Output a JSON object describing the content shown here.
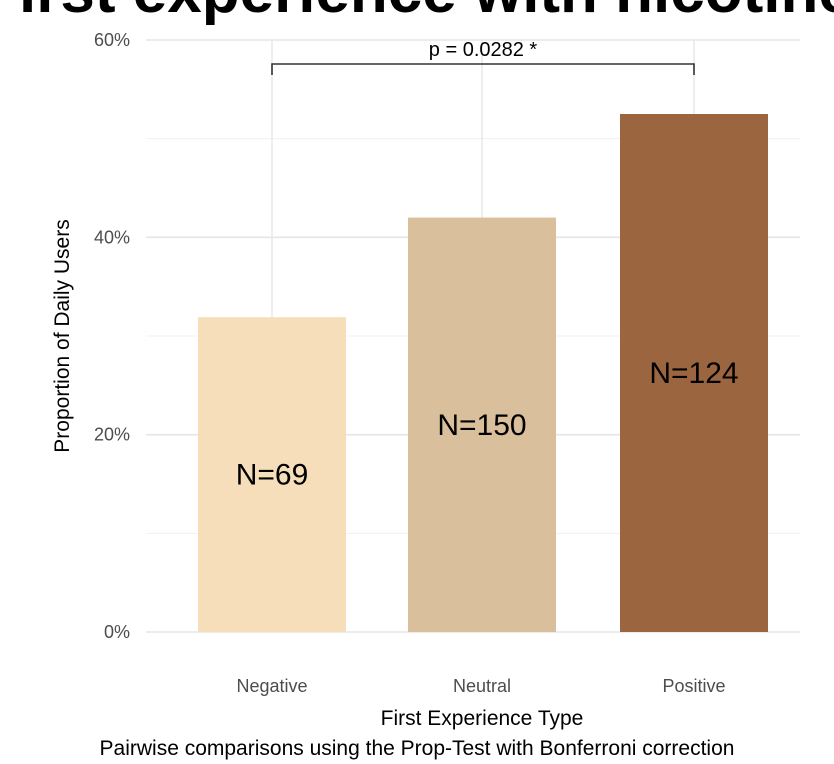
{
  "chart_data": {
    "type": "bar",
    "title": "First experience with nicotine",
    "xlabel": "First Experience Type",
    "ylabel": "Proportion of Daily Users",
    "categories": [
      "Negative",
      "Neutral",
      "Positive"
    ],
    "values": [
      0.319,
      0.42,
      0.525
    ],
    "bar_labels": [
      "N=69",
      "N=150",
      "N=124"
    ],
    "colors": [
      "#f5deb9",
      "#d9bf9b",
      "#9b6540"
    ],
    "ylim": [
      0,
      0.6
    ],
    "yticks": [
      0,
      0.2,
      0.4,
      0.6
    ],
    "ytick_labels": [
      "0%",
      "20%",
      "40%",
      "60%"
    ],
    "grid": true,
    "comparison": {
      "from": "Negative",
      "to": "Positive",
      "label": "p = 0.0282 *"
    },
    "caption": "Pairwise comparisons using the Prop-Test with Bonferroni correction"
  }
}
